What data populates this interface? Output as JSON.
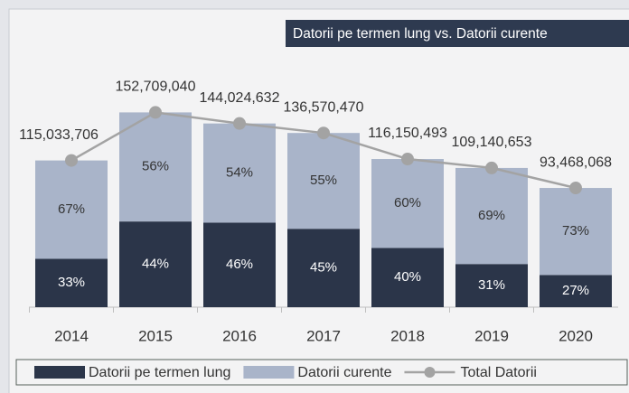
{
  "chart_data": {
    "type": "stacked-bar-line",
    "title": "Datorii pe termen lung vs. Datorii curente",
    "categories": [
      "2014",
      "2015",
      "2016",
      "2017",
      "2018",
      "2019",
      "2020"
    ],
    "ylim": [
      0,
      170000000
    ],
    "series": [
      {
        "name": "Datorii pe termen lung",
        "color": "#2b3549",
        "values": [
          33,
          44,
          46,
          45,
          40,
          31,
          27
        ],
        "value_labels": [
          "33%",
          "44%",
          "46%",
          "45%",
          "40%",
          "31%",
          "27%"
        ]
      },
      {
        "name": "Datorii curente",
        "color": "#a9b4c9",
        "values": [
          67,
          56,
          54,
          55,
          60,
          69,
          73
        ],
        "value_labels": [
          "67%",
          "56%",
          "54%",
          "55%",
          "60%",
          "69%",
          "73%"
        ]
      },
      {
        "name": "Total Datorii",
        "color": "#a3a3a3",
        "values": [
          115033706,
          152709040,
          144024632,
          136570470,
          116150493,
          109140653,
          93468068
        ],
        "value_labels": [
          "115,033,706",
          "152,709,040",
          "144,024,632",
          "136,570,470",
          "116,150,493",
          "109,140,653",
          "93,468,068"
        ]
      }
    ]
  }
}
